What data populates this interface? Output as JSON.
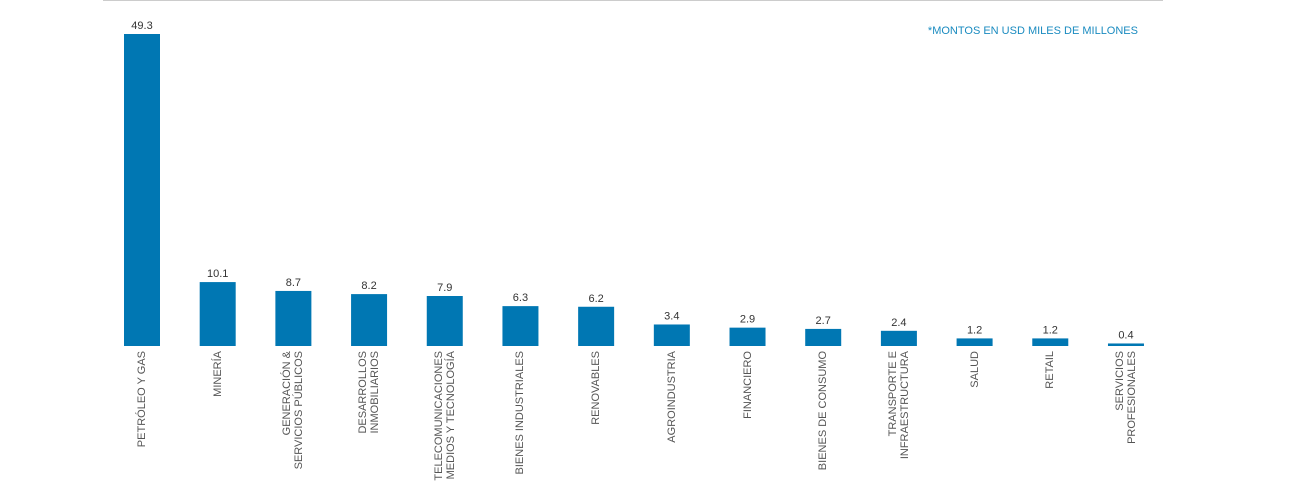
{
  "chart_data": {
    "type": "bar",
    "annotation": "*MONTOS EN USD MILES DE MILLONES",
    "categories": [
      "PETRÓLEO Y GAS",
      "MINERÍA",
      "GENERACIÓN &\nSERVICIOS PÚBLICOS",
      "DESARROLLOS\nINMOBILIARIOS",
      "TELECOMUNICACIONES\nMEDIOS Y TECNOLOGÍA",
      "BIENES INDUSTRIALES",
      "RENOVABLES",
      "AGROINDUSTRIA",
      "FINANCIERO",
      "BIENES DE CONSUMO",
      "TRANSPORTE E\nINFRAESTRUCTURA",
      "SALUD",
      "RETAIL",
      "SERVICIOS\nPROFESIONALES"
    ],
    "values": [
      49.3,
      10.1,
      8.7,
      8.2,
      7.9,
      6.3,
      6.2,
      3.4,
      2.9,
      2.7,
      2.4,
      1.2,
      1.2,
      0.4
    ],
    "color": "#0077b3"
  }
}
